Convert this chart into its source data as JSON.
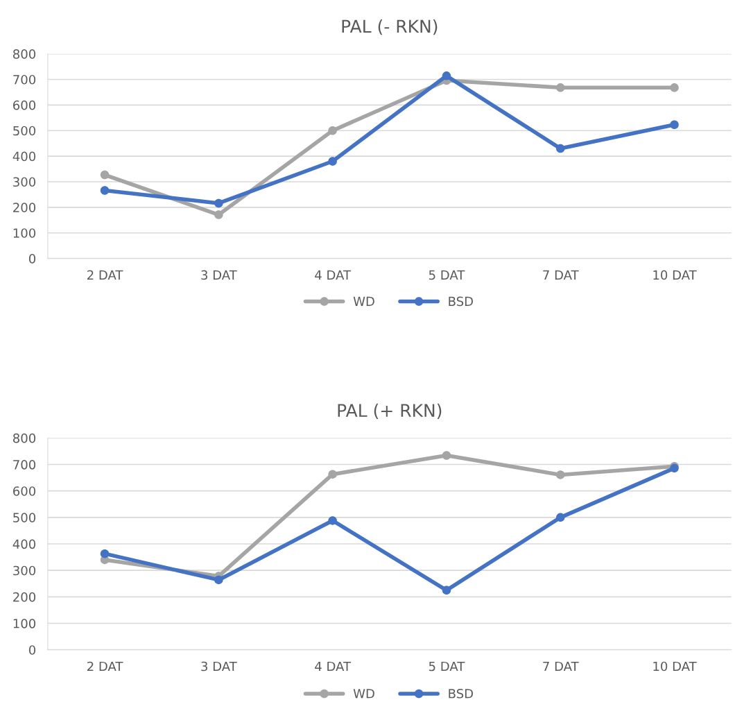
{
  "chart_data": [
    {
      "type": "line",
      "title": "PAL (- RKN)",
      "categories": [
        "2 DAT",
        "3 DAT",
        "4 DAT",
        "5 DAT",
        "7 DAT",
        "10 DAT"
      ],
      "series": [
        {
          "name": "WD",
          "color": "#a5a5a5",
          "values": [
            327,
            171,
            500,
            696,
            668,
            668
          ]
        },
        {
          "name": "BSD",
          "color": "#4472c4",
          "values": [
            266,
            216,
            380,
            714,
            430,
            523
          ]
        }
      ],
      "ylim": [
        0,
        800
      ],
      "yticks": [
        0,
        100,
        200,
        300,
        400,
        500,
        600,
        700,
        800
      ],
      "grid": "y",
      "legend": "bottom",
      "marker": "circle",
      "line_style": "solid"
    },
    {
      "type": "line",
      "title": "PAL (+ RKN)",
      "categories": [
        "2 DAT",
        "3 DAT",
        "4 DAT",
        "5 DAT",
        "7 DAT",
        "10 DAT"
      ],
      "series": [
        {
          "name": "WD",
          "color": "#a5a5a5",
          "values": [
            340,
            278,
            663,
            734,
            661,
            693
          ]
        },
        {
          "name": "BSD",
          "color": "#4472c4",
          "values": [
            363,
            264,
            488,
            225,
            500,
            686
          ]
        }
      ],
      "ylim": [
        0,
        800
      ],
      "yticks": [
        0,
        100,
        200,
        300,
        400,
        500,
        600,
        700,
        800
      ],
      "grid": "y",
      "legend": "bottom",
      "marker": "circle",
      "line_style": "solid"
    }
  ]
}
